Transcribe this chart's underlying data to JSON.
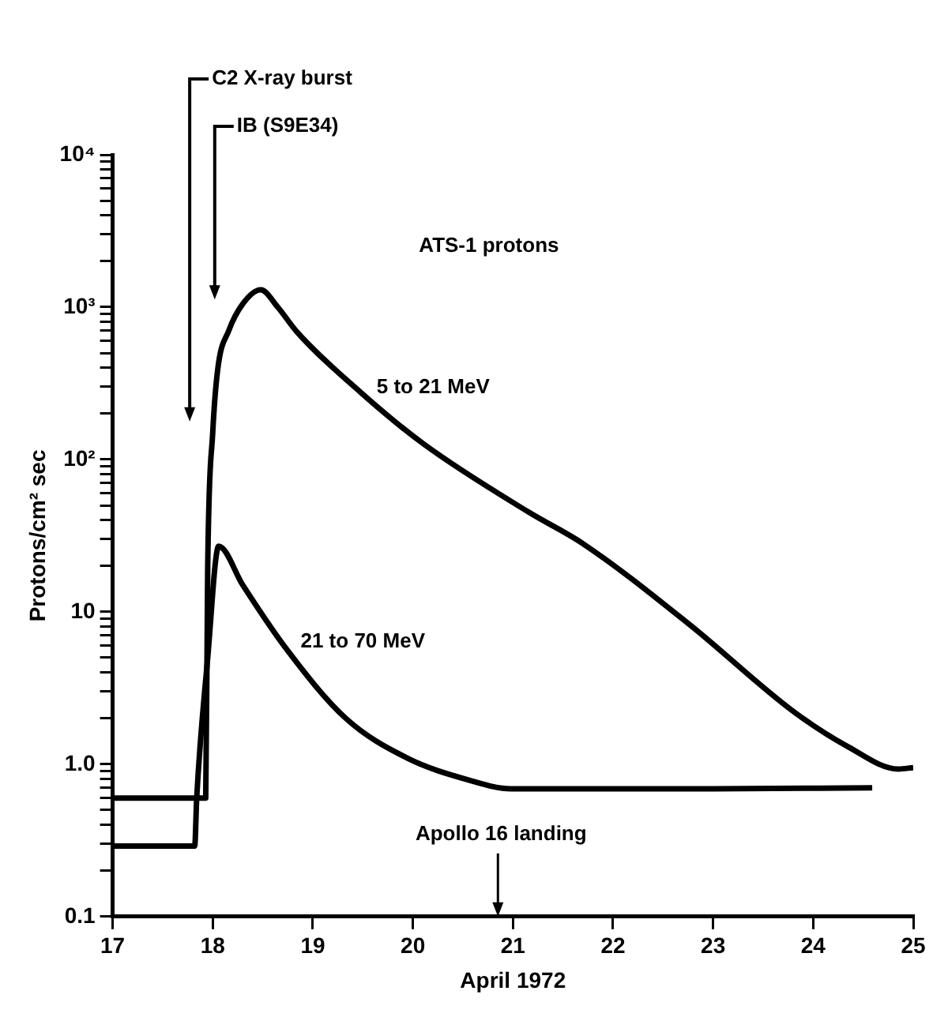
{
  "chart_data": {
    "type": "line",
    "xlabel": "April 1972",
    "ylabel": "Protons/cm² sec",
    "log": "y",
    "xlim": [
      17,
      25
    ],
    "xticks": [
      17,
      18,
      19,
      20,
      21,
      22,
      23,
      24,
      25
    ],
    "ylim": [
      0.1,
      10000
    ],
    "yticks": [
      {
        "value": 0.1,
        "label": "0.1"
      },
      {
        "value": 0.2,
        "label": null
      },
      {
        "value": 0.3,
        "label": null
      },
      {
        "value": 0.4,
        "label": null
      },
      {
        "value": 0.5,
        "label": null
      },
      {
        "value": 0.6,
        "label": null
      },
      {
        "value": 0.7,
        "label": null
      },
      {
        "value": 0.8,
        "label": null
      },
      {
        "value": 0.9,
        "label": null
      },
      {
        "value": 1,
        "label": "1.0"
      },
      {
        "value": 2,
        "label": null
      },
      {
        "value": 3,
        "label": null
      },
      {
        "value": 4,
        "label": null
      },
      {
        "value": 5,
        "label": null
      },
      {
        "value": 6,
        "label": null
      },
      {
        "value": 7,
        "label": null
      },
      {
        "value": 8,
        "label": null
      },
      {
        "value": 9,
        "label": null
      },
      {
        "value": 10,
        "label": "10"
      },
      {
        "value": 20,
        "label": null
      },
      {
        "value": 30,
        "label": null
      },
      {
        "value": 40,
        "label": null
      },
      {
        "value": 50,
        "label": null
      },
      {
        "value": 60,
        "label": null
      },
      {
        "value": 70,
        "label": null
      },
      {
        "value": 80,
        "label": null
      },
      {
        "value": 90,
        "label": null
      },
      {
        "value": 100,
        "label": "10²"
      },
      {
        "value": 200,
        "label": null
      },
      {
        "value": 300,
        "label": null
      },
      {
        "value": 400,
        "label": null
      },
      {
        "value": 500,
        "label": null
      },
      {
        "value": 600,
        "label": null
      },
      {
        "value": 700,
        "label": null
      },
      {
        "value": 800,
        "label": null
      },
      {
        "value": 900,
        "label": null
      },
      {
        "value": 1000,
        "label": "10³"
      },
      {
        "value": 2000,
        "label": null
      },
      {
        "value": 3000,
        "label": null
      },
      {
        "value": 4000,
        "label": null
      },
      {
        "value": 5000,
        "label": null
      },
      {
        "value": 6000,
        "label": null
      },
      {
        "value": 7000,
        "label": null
      },
      {
        "value": 8000,
        "label": null
      },
      {
        "value": 9000,
        "label": null
      },
      {
        "value": 10000,
        "label": "10⁴"
      }
    ],
    "series": [
      {
        "name": "5 to 21 MeV",
        "color": "#000000",
        "x": [
          17,
          17.93,
          17.95,
          18.0,
          18.05,
          18.16,
          18.3,
          18.48,
          18.65,
          18.84,
          19.48,
          20.11,
          21.16,
          21.7,
          22.76,
          23.81,
          24.35,
          24.85,
          25
        ],
        "values": [
          0.6,
          0.6,
          20,
          150,
          390,
          700,
          1050,
          1300,
          1000,
          690,
          275,
          126,
          45,
          28,
          8.3,
          2.2,
          1.3,
          0.93,
          0.95
        ]
      },
      {
        "name": "21 to 70 MeV",
        "color": "#000000",
        "x": [
          17,
          17.82,
          17.84,
          17.95,
          18.06,
          18.3,
          18.72,
          19.33,
          19.94,
          20.55,
          20.98,
          22,
          23,
          24.59
        ],
        "values": [
          0.29,
          0.29,
          0.6,
          5,
          27,
          15,
          5.9,
          2.0,
          1.1,
          0.79,
          0.69,
          0.69,
          0.69,
          0.7
        ]
      }
    ],
    "ref_lines": [
      {
        "axis": "x",
        "value": 17.77,
        "label": "C2 X-ray burst"
      },
      {
        "axis": "x",
        "value": 18.02,
        "label": "IB (S9E34)"
      },
      {
        "axis": "x",
        "value": 20.85,
        "label": "Apollo 16 landing"
      }
    ],
    "annotations": [
      "ATS-1 protons"
    ]
  }
}
